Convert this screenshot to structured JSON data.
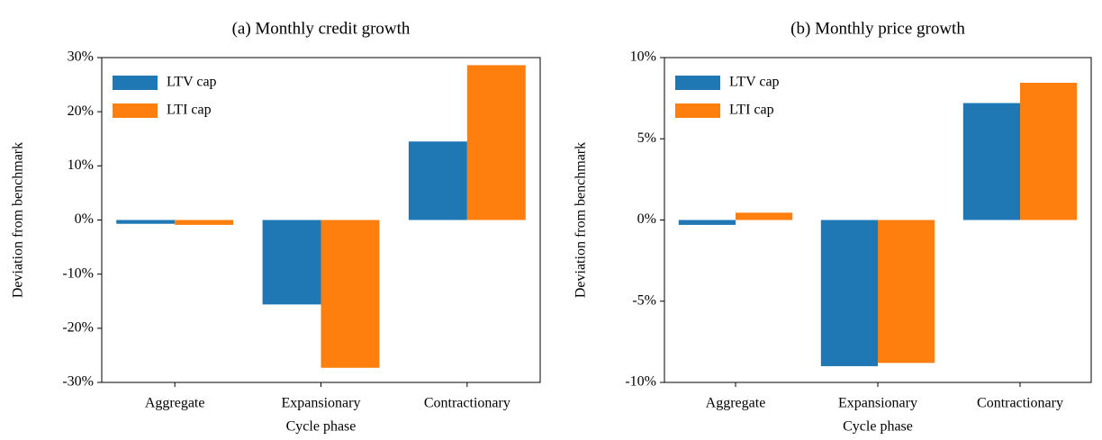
{
  "chart_data": [
    {
      "type": "bar",
      "title": "(a) Monthly credit growth",
      "xlabel": "Cycle phase",
      "ylabel": "Deviation from benchmark",
      "categories": [
        "Aggregate",
        "Expansionary",
        "Contractionary"
      ],
      "series": [
        {
          "name": "LTV cap",
          "color": "#1f77b4",
          "values": [
            -0.7,
            -15.6,
            14.5
          ]
        },
        {
          "name": "LTI cap",
          "color": "#ff7f0e",
          "values": [
            -0.9,
            -27.3,
            28.6
          ]
        }
      ],
      "ylim": [
        -30,
        30
      ],
      "yticks": [
        {
          "value": -30,
          "label": "-30%"
        },
        {
          "value": -20,
          "label": "-20%"
        },
        {
          "value": -10,
          "label": "-10%"
        },
        {
          "value": 0,
          "label": "0%"
        },
        {
          "value": 10,
          "label": "10%"
        },
        {
          "value": 20,
          "label": "20%"
        },
        {
          "value": 30,
          "label": "30%"
        }
      ],
      "legend": "upper left"
    },
    {
      "type": "bar",
      "title": "(b) Monthly price growth",
      "xlabel": "Cycle phase",
      "ylabel": "Deviation from benchmark",
      "categories": [
        "Aggregate",
        "Expansionary",
        "Contractionary"
      ],
      "series": [
        {
          "name": "LTV cap",
          "color": "#1f77b4",
          "values": [
            -0.3,
            -9.0,
            7.2
          ]
        },
        {
          "name": "LTI cap",
          "color": "#ff7f0e",
          "values": [
            0.45,
            -8.8,
            8.45
          ]
        }
      ],
      "ylim": [
        -10,
        10
      ],
      "yticks": [
        {
          "value": -10,
          "label": "-10%"
        },
        {
          "value": -5,
          "label": "-5%"
        },
        {
          "value": 0,
          "label": "0%"
        },
        {
          "value": 5,
          "label": "5%"
        },
        {
          "value": 10,
          "label": "10%"
        }
      ],
      "legend": "upper left"
    }
  ]
}
